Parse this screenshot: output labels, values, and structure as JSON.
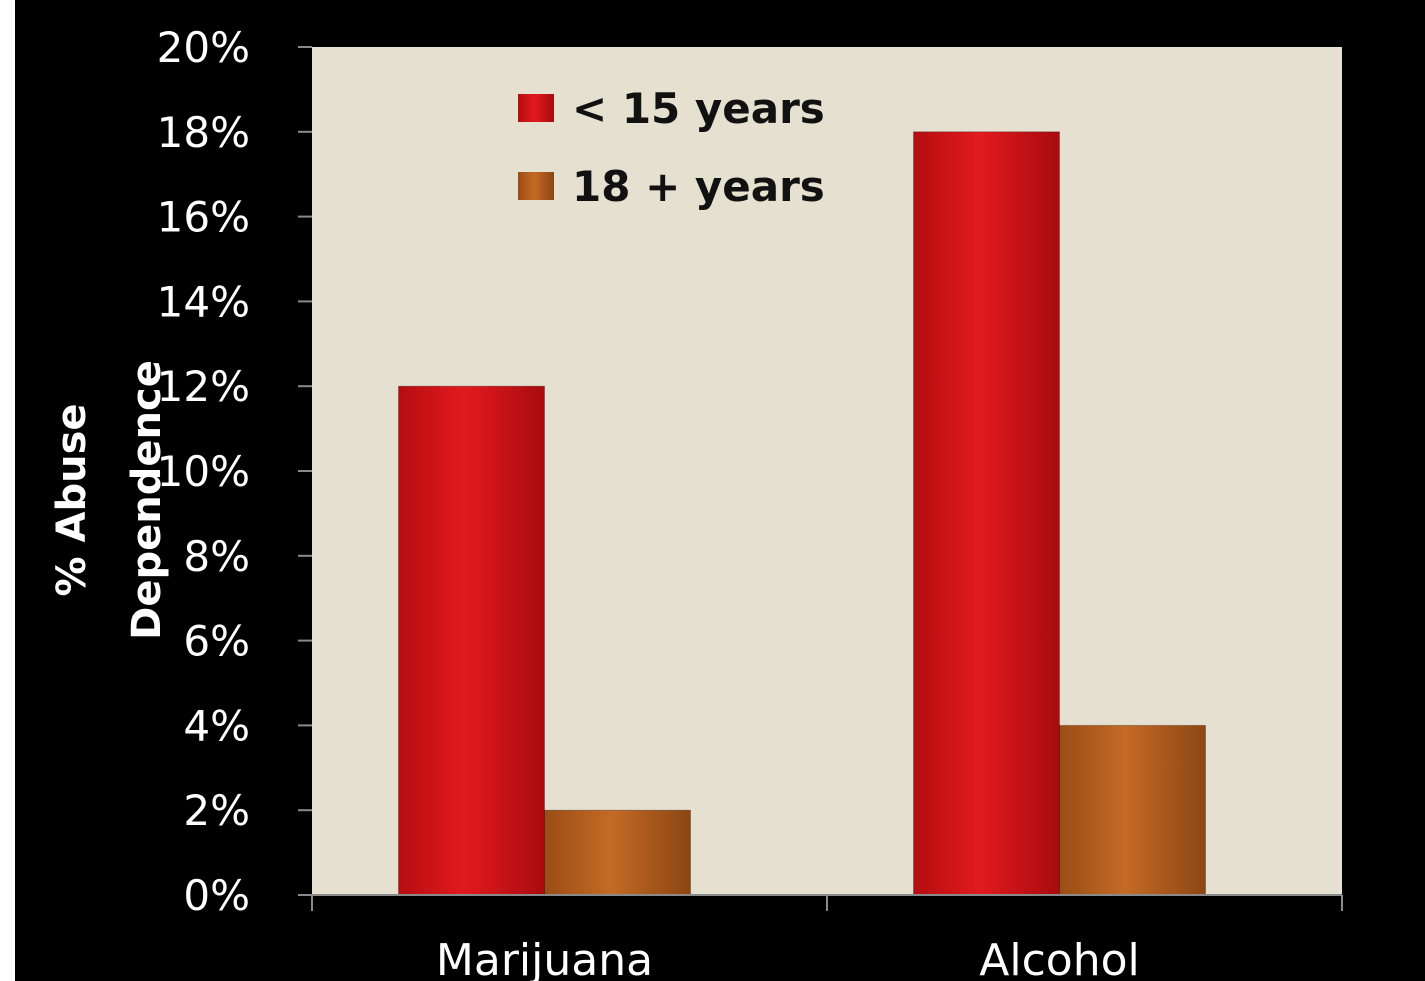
{
  "chart_data": {
    "type": "bar",
    "categories": [
      "Marijuana",
      "Alcohol"
    ],
    "series": [
      {
        "name": "< 15 years",
        "values": [
          12,
          18
        ],
        "color": "#d41418"
      },
      {
        "name": "18 + years",
        "values": [
          2,
          4
        ],
        "color": "#b8601e"
      }
    ],
    "title": "",
    "xlabel": "",
    "ylabel_lines": [
      "% Abuse",
      "Dependence"
    ],
    "ylim": [
      0,
      20
    ],
    "yticks": [
      0,
      2,
      4,
      6,
      8,
      10,
      12,
      14,
      16,
      18,
      20
    ],
    "tick_suffix": "%",
    "legend_position": "top-left",
    "grid": false
  },
  "colors": {
    "frame": "#000000",
    "plot_background": "#e6e0d1",
    "text": "#ffffff"
  }
}
